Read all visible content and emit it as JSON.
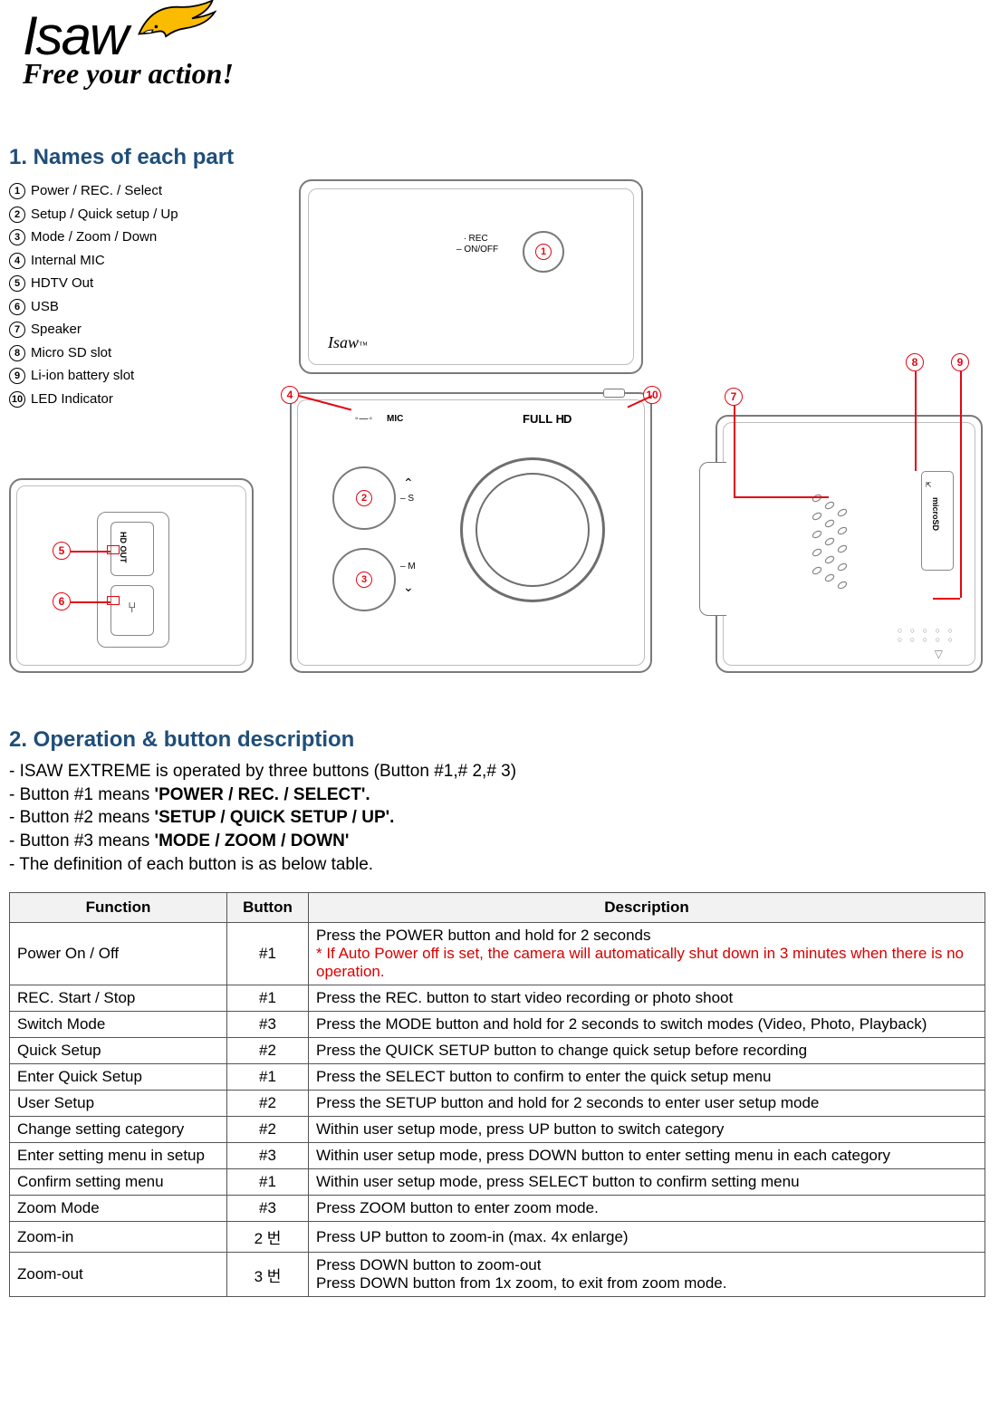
{
  "logo": {
    "name": "Isaw",
    "tagline": "Free your action!",
    "eagle_body": "#fbbb00",
    "eagle_outline": "#000000",
    "eagle_beak": "#ffffff"
  },
  "section1": {
    "title": "1. Names of each part",
    "parts": [
      "Power / REC. / Select",
      "Setup / Quick setup / Up",
      "Mode / Zoom / Down",
      "Internal MIC",
      "HDTV Out",
      "USB",
      "Speaker",
      "Micro SD slot",
      "Li-ion battery slot",
      "LED Indicator"
    ],
    "diagram_labels": {
      "rec_line1": "∙ REC",
      "rec_line2": "– ON/OFF",
      "mic": "MIC",
      "fullhd": "FULL HD",
      "s_mark": "– S",
      "m_mark": "– M",
      "hdout": "HD OUT",
      "microsd": "microSD"
    }
  },
  "section2": {
    "title": "2. Operation & button description",
    "lines": [
      {
        "pre": "- ISAW EXTREME is operated by three buttons (Button #1,# 2,# 3)",
        "bold": ""
      },
      {
        "pre": "- Button #1 means ",
        "bold": "'POWER / REC. / SELECT'."
      },
      {
        "pre": "- Button #2 means ",
        "bold": "'SETUP / QUICK SETUP / UP'."
      },
      {
        "pre": "- Button #3 means ",
        "bold": "'MODE / ZOOM / DOWN'"
      },
      {
        "pre": "- The definition of each button is as below table.",
        "bold": ""
      }
    ],
    "headers": [
      "Function",
      "Button",
      "Description"
    ],
    "rows": [
      {
        "fn": "Power On / Off",
        "btn": "#1",
        "desc": "Press the POWER button and hold for 2 seconds",
        "note": "* If Auto Power off is set, the camera will automatically shut down in 3 minutes when there is no operation."
      },
      {
        "fn": "REC. Start / Stop",
        "btn": "#1",
        "desc": "Press the REC. button to start video recording or photo shoot"
      },
      {
        "fn": "Switch Mode",
        "btn": "#3",
        "desc": "Press the MODE button and hold for 2 seconds to switch modes (Video, Photo, Playback)"
      },
      {
        "fn": "Quick Setup",
        "btn": "#2",
        "desc": "Press the QUICK SETUP button to change quick setup before recording"
      },
      {
        "fn": "Enter Quick Setup",
        "btn": "#1",
        "desc": "Press the SELECT button to confirm to enter the quick setup menu"
      },
      {
        "fn": "User Setup",
        "btn": "#2",
        "desc": "Press the SETUP button and hold for 2 seconds to enter user setup mode"
      },
      {
        "fn": "Change setting category",
        "btn": "#2",
        "desc": "Within user setup mode, press UP button to switch category"
      },
      {
        "fn": "Enter setting menu in setup",
        "btn": "#3",
        "desc": "Within user setup mode, press DOWN button to enter setting menu in each category"
      },
      {
        "fn": "Confirm setting menu",
        "btn": "#1",
        "desc": "Within user setup mode, press SELECT button to confirm setting menu"
      },
      {
        "fn": "Zoom Mode",
        "btn": "#3",
        "desc": "Press ZOOM button to enter zoom mode."
      },
      {
        "fn": "Zoom-in",
        "btn": "2 번",
        "desc": "Press UP button to zoom-in (max. 4x enlarge)"
      },
      {
        "fn": "Zoom-out",
        "btn": "3 번",
        "desc": "Press DOWN button to zoom-out\nPress DOWN button from 1x zoom, to exit from zoom mode."
      }
    ]
  },
  "colors": {
    "heading": "#1f4e79",
    "accent_red": "#e30613",
    "note_red": "#d90000",
    "table_header_bg": "#f2f2f2",
    "border": "#555555",
    "diagram_stroke": "#7a7a7a"
  }
}
